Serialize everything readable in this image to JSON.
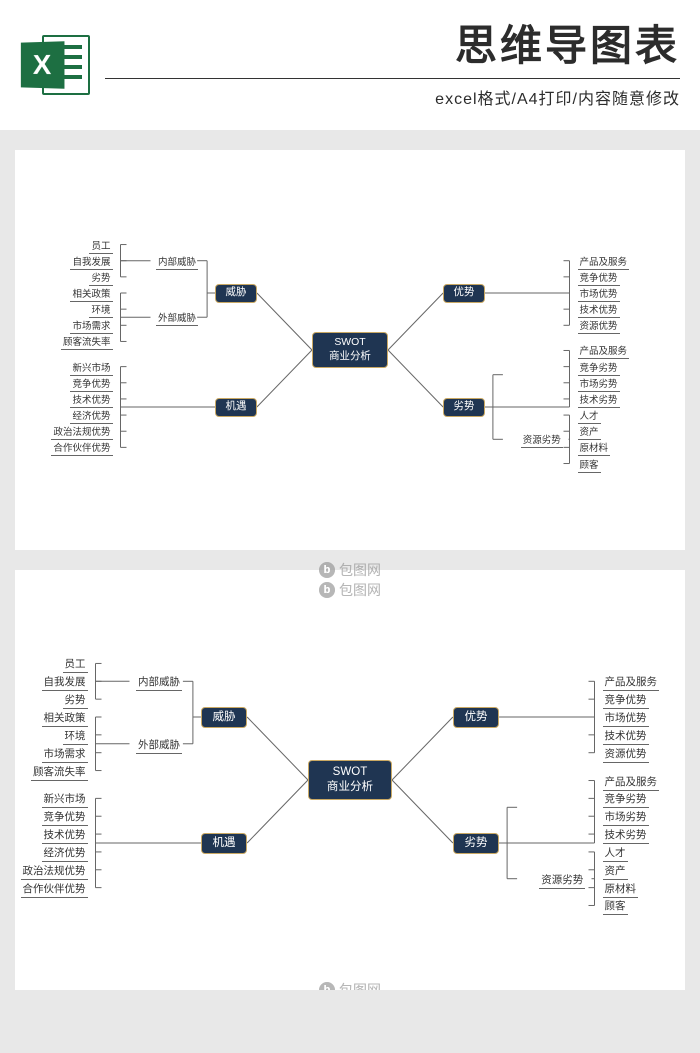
{
  "header": {
    "title": "思维导图表",
    "subtitle": "excel格式/A4打印/内容随意修改",
    "icon_letter": "X",
    "icon_color": "#1d6f42"
  },
  "colors": {
    "page_bg": "#e8e8e8",
    "panel_bg": "#ffffff",
    "node_bg": "#1f3552",
    "node_border": "#c9a863",
    "node_text": "#ffffff",
    "leaf_text": "#333333",
    "leaf_underline": "#666666",
    "line_stroke": "#666666"
  },
  "watermark_text": "包图网",
  "diagram": {
    "type": "mindmap",
    "center": {
      "line1": "SWOT",
      "line2": "商业分析"
    },
    "branches": {
      "top_left": {
        "label": "威胁",
        "groups": [
          {
            "label": "内部威胁",
            "items": [
              "员工",
              "自我发展",
              "劣势"
            ]
          },
          {
            "label": "外部威胁",
            "items": [
              "相关政策",
              "环境",
              "市场需求",
              "顾客流失率"
            ]
          }
        ]
      },
      "bottom_left": {
        "label": "机遇",
        "groups": [
          {
            "items": [
              "新兴市场",
              "竞争优势",
              "技术优势",
              "经济优势",
              "政治法规优势",
              "合作伙伴优势"
            ]
          }
        ]
      },
      "top_right": {
        "label": "优势",
        "groups": [
          {
            "items": [
              "产品及服务",
              "竞争优势",
              "市场优势",
              "技术优势",
              "资源优势"
            ]
          }
        ]
      },
      "bottom_right": {
        "label": "劣势",
        "groups": [
          {
            "items": [
              "产品及服务",
              "竞争劣势",
              "市场劣势",
              "技术劣势"
            ]
          },
          {
            "label": "资源劣势",
            "items": [
              "人才",
              "资产",
              "原材料",
              "顾客"
            ]
          }
        ]
      }
    }
  }
}
